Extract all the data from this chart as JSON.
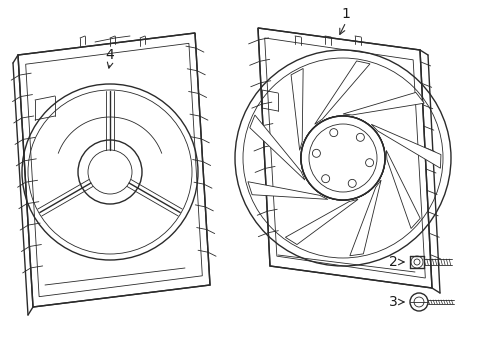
{
  "bg_color": "#ffffff",
  "line_color": "#2a2a2a",
  "label_color": "#1a1a1a",
  "fig_width": 4.9,
  "fig_height": 3.6,
  "dpi": 100
}
